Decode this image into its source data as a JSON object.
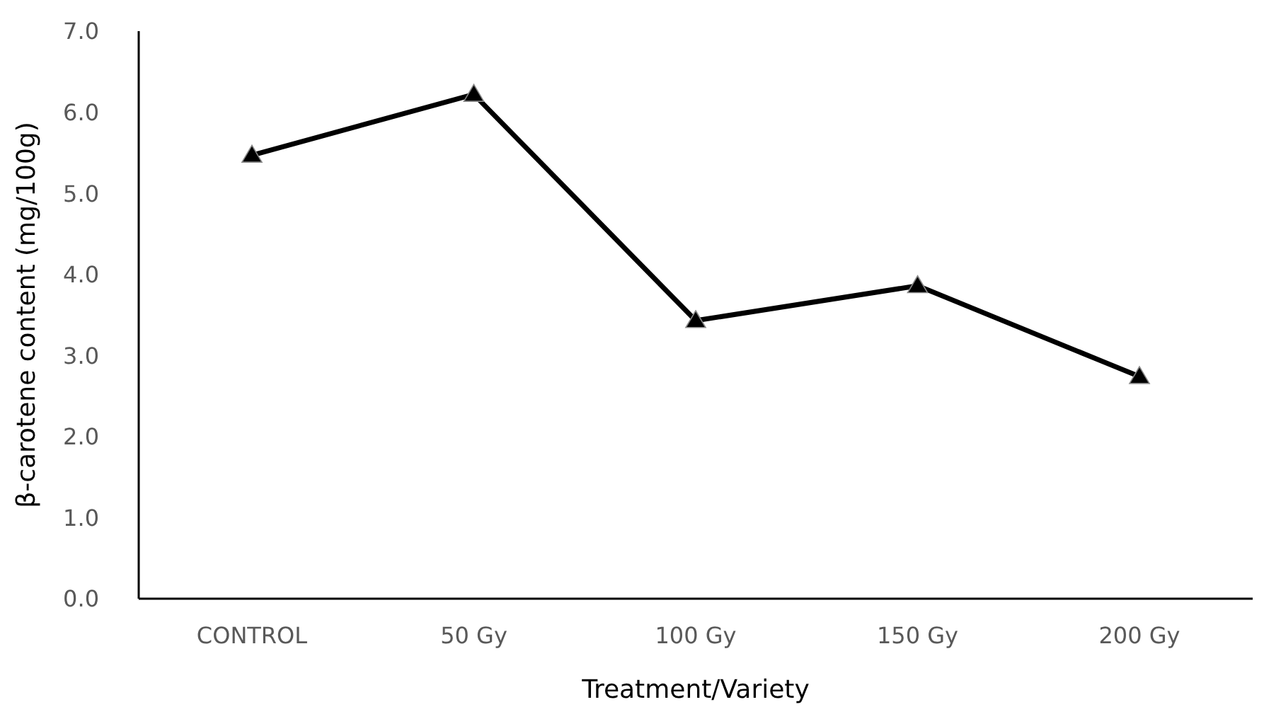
{
  "chart_data": {
    "type": "line",
    "xlabel": "Treatment/Variety",
    "ylabel": "β-carotene content (mg/100g)",
    "categories": [
      "CONTROL",
      "50 Gy",
      "100 Gy",
      "150 Gy",
      "200 Gy"
    ],
    "series": [
      {
        "color": "#000000",
        "values": [
          5.47,
          6.22,
          3.43,
          3.86,
          2.74
        ]
      }
    ],
    "ylim": [
      0,
      7
    ],
    "yticks": [
      {
        "value": 0,
        "label": "0.0"
      },
      {
        "value": 1,
        "label": "1.0"
      },
      {
        "value": 2,
        "label": "2.0"
      },
      {
        "value": 3,
        "label": "3.0"
      },
      {
        "value": 4,
        "label": "4.0"
      },
      {
        "value": 5,
        "label": "5.0"
      },
      {
        "value": 6,
        "label": "6.0"
      },
      {
        "value": 7,
        "label": "7.0"
      }
    ],
    "grid": false,
    "legend": false,
    "marker": "triangle",
    "line_style": "solid"
  }
}
